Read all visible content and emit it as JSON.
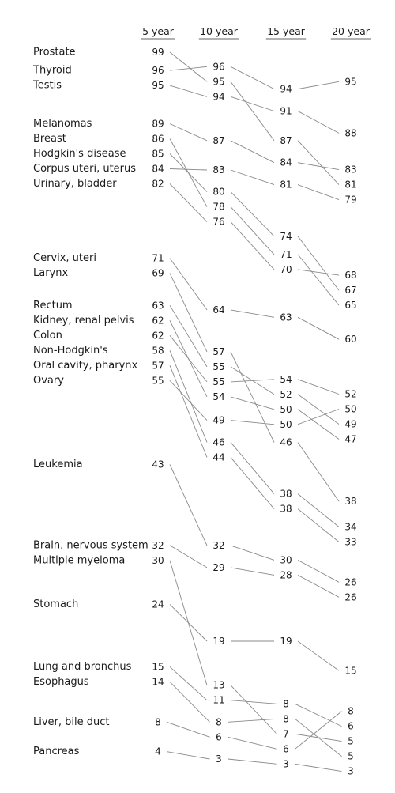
{
  "chart_data": {
    "type": "slopegraph",
    "columns": [
      "5 year",
      "10 year",
      "15 year",
      "20 year"
    ],
    "series": [
      {
        "name": "Prostate",
        "values": [
          99,
          95,
          87,
          81
        ]
      },
      {
        "name": "Thyroid",
        "values": [
          96,
          96,
          94,
          95
        ]
      },
      {
        "name": "Testis",
        "values": [
          95,
          94,
          91,
          88
        ]
      },
      {
        "name": "Melanomas",
        "values": [
          89,
          87,
          84,
          83
        ]
      },
      {
        "name": "Breast",
        "values": [
          86,
          78,
          71,
          65
        ]
      },
      {
        "name": "Hodgkin's disease",
        "values": [
          85,
          80,
          74,
          67
        ]
      },
      {
        "name": "Corpus uteri, uterus",
        "values": [
          84,
          83,
          81,
          79
        ]
      },
      {
        "name": "Urinary, bladder",
        "values": [
          82,
          76,
          70,
          68
        ]
      },
      {
        "name": "Cervix, uteri",
        "values": [
          71,
          64,
          63,
          60
        ]
      },
      {
        "name": "Larynx",
        "values": [
          69,
          57,
          46,
          38
        ]
      },
      {
        "name": "Rectum",
        "values": [
          63,
          55,
          52,
          49
        ]
      },
      {
        "name": "Kidney, renal pelvis",
        "values": [
          62,
          54,
          50,
          47
        ]
      },
      {
        "name": "Colon",
        "values": [
          62,
          55,
          54,
          52
        ]
      },
      {
        "name": "Non-Hodgkin's",
        "values": [
          58,
          46,
          38,
          34
        ]
      },
      {
        "name": "Oral cavity, pharynx",
        "values": [
          57,
          44,
          38,
          33
        ]
      },
      {
        "name": "Ovary",
        "values": [
          55,
          49,
          50,
          50
        ]
      },
      {
        "name": "Leukemia",
        "values": [
          43,
          32,
          30,
          26
        ]
      },
      {
        "name": "Brain, nervous system",
        "values": [
          32,
          29,
          28,
          26
        ]
      },
      {
        "name": "Multiple myeloma",
        "values": [
          30,
          13,
          7,
          5
        ]
      },
      {
        "name": "Stomach",
        "values": [
          24,
          19,
          19,
          15
        ]
      },
      {
        "name": "Lung and bronchus",
        "values": [
          15,
          11,
          8,
          6
        ]
      },
      {
        "name": "Esophagus",
        "values": [
          14,
          8,
          8,
          5
        ]
      },
      {
        "name": "Liver, bile duct",
        "values": [
          8,
          6,
          6,
          8
        ]
      },
      {
        "name": "Pancreas",
        "values": [
          4,
          3,
          3,
          3
        ]
      }
    ]
  }
}
